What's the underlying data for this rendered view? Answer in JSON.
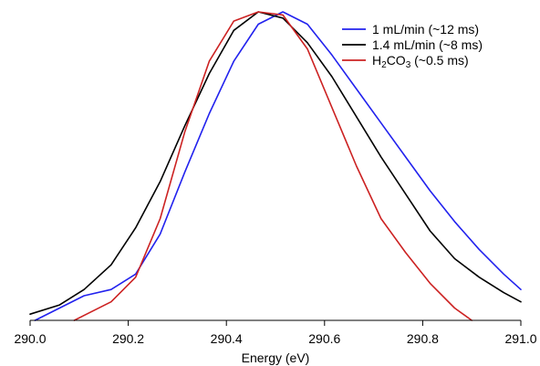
{
  "chart_data": {
    "type": "line",
    "title": "",
    "xlabel": "Energy (eV)",
    "ylabel": "",
    "xlim": [
      290.0,
      291.0
    ],
    "ylim": [
      0,
      1
    ],
    "x_ticks": [
      "290.0",
      "290.2",
      "290.4",
      "290.6",
      "290.8",
      "291.0"
    ],
    "grid": false,
    "legend_position": "top-right",
    "series": [
      {
        "name": "1 mL/min (~12 ms)",
        "legend": {
          "pre": "1 mL/min (~12 ms)",
          "sub": "",
          "post": ""
        },
        "color": "#2222ee",
        "x": [
          290.01,
          290.06,
          290.11,
          290.165,
          290.215,
          290.265,
          290.315,
          290.365,
          290.415,
          290.465,
          290.515,
          290.565,
          290.615,
          290.665,
          290.715,
          290.765,
          290.815,
          290.865,
          290.915,
          290.965,
          291.0
        ],
        "y": [
          0.0,
          0.04,
          0.08,
          0.1,
          0.15,
          0.28,
          0.48,
          0.67,
          0.84,
          0.96,
          1.0,
          0.96,
          0.86,
          0.75,
          0.64,
          0.53,
          0.42,
          0.32,
          0.23,
          0.15,
          0.1
        ]
      },
      {
        "name": "1.4 mL/min (~8 ms)",
        "legend": {
          "pre": "1.4 mL/min (~8 ms)",
          "sub": "",
          "post": ""
        },
        "color": "#000000",
        "x": [
          290.0,
          290.06,
          290.11,
          290.165,
          290.215,
          290.265,
          290.315,
          290.365,
          290.415,
          290.465,
          290.515,
          290.565,
          290.615,
          290.665,
          290.715,
          290.765,
          290.815,
          290.865,
          290.915,
          290.965,
          291.0
        ],
        "y": [
          0.02,
          0.05,
          0.1,
          0.18,
          0.3,
          0.45,
          0.63,
          0.8,
          0.94,
          1.0,
          0.98,
          0.9,
          0.79,
          0.66,
          0.53,
          0.41,
          0.29,
          0.2,
          0.14,
          0.09,
          0.06
        ]
      },
      {
        "name": "H2CO3 (~0.5 ms)",
        "legend": {
          "pre": "H",
          "sub": "2",
          "post": "CO",
          "sub2": "3",
          "post2": " (~0.5 ms)"
        },
        "color": "#cc2222",
        "x": [
          290.09,
          290.115,
          290.165,
          290.215,
          290.265,
          290.315,
          290.365,
          290.415,
          290.465,
          290.515,
          290.565,
          290.615,
          290.665,
          290.715,
          290.765,
          290.815,
          290.865,
          290.9
        ],
        "y": [
          0.0,
          0.02,
          0.06,
          0.14,
          0.33,
          0.61,
          0.84,
          0.97,
          1.0,
          0.99,
          0.88,
          0.69,
          0.5,
          0.33,
          0.22,
          0.12,
          0.04,
          0.0
        ]
      }
    ]
  }
}
